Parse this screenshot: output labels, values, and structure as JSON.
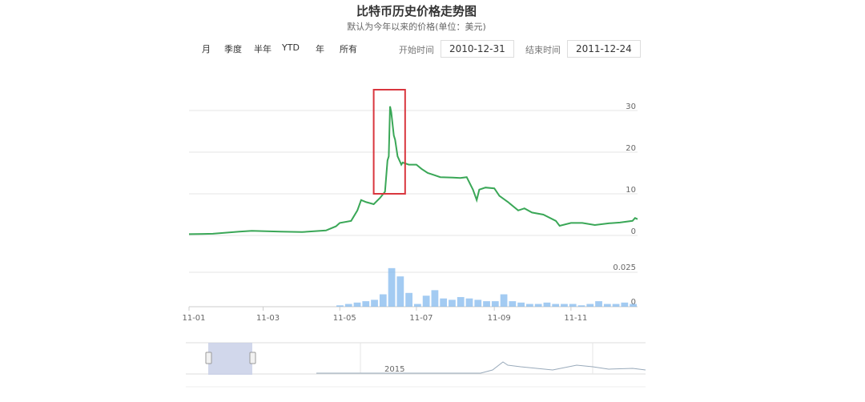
{
  "title": "比特币历史价格走势图",
  "subtitle": "默认为今年以来的价格(单位：美元)",
  "range_selector": {
    "buttons": [
      "月",
      "季度",
      "半年",
      "YTD",
      "年",
      "所有"
    ],
    "start_label": "开始时间",
    "start_value": "2010-12-31",
    "end_label": "结束时间",
    "end_value": "2011-12-24"
  },
  "colors": {
    "price_line": "#3aa757",
    "volume_bar": "#7cb5ec",
    "highlight": "#d9363e",
    "navigator_mask": "#c6cde6",
    "grid": "#e6e6e6"
  },
  "chart_data": [
    {
      "type": "line",
      "x_start": "2011-01-01",
      "x_end": "2011-12-24",
      "x_tick_labels": [
        "11-01",
        "11-03",
        "11-05",
        "11-07",
        "11-09",
        "11-11"
      ],
      "x_tick_dates": [
        "2011-01-01",
        "2011-03-01",
        "2011-05-01",
        "2011-07-01",
        "2011-09-01",
        "2011-11-01"
      ],
      "ylim": [
        0,
        35
      ],
      "y_ticks": [
        0,
        10,
        20,
        30
      ],
      "grid": true,
      "points": [
        [
          "2011-01-01",
          0.3
        ],
        [
          "2011-01-20",
          0.4
        ],
        [
          "2011-02-10",
          0.9
        ],
        [
          "2011-02-20",
          1.1
        ],
        [
          "2011-03-15",
          0.9
        ],
        [
          "2011-04-01",
          0.8
        ],
        [
          "2011-04-20",
          1.2
        ],
        [
          "2011-04-28",
          2.2
        ],
        [
          "2011-05-01",
          3
        ],
        [
          "2011-05-10",
          3.5
        ],
        [
          "2011-05-15",
          6
        ],
        [
          "2011-05-18",
          8.5
        ],
        [
          "2011-05-22",
          8
        ],
        [
          "2011-05-28",
          7.5
        ],
        [
          "2011-06-02",
          9
        ],
        [
          "2011-06-06",
          10.5
        ],
        [
          "2011-06-08",
          18
        ],
        [
          "2011-06-09",
          19
        ],
        [
          "2011-06-10",
          31
        ],
        [
          "2011-06-11",
          29.6
        ],
        [
          "2011-06-13",
          24
        ],
        [
          "2011-06-14",
          23
        ],
        [
          "2011-06-16",
          19
        ],
        [
          "2011-06-19",
          17
        ],
        [
          "2011-06-20",
          17.5
        ],
        [
          "2011-06-25",
          17
        ],
        [
          "2011-07-01",
          17
        ],
        [
          "2011-07-05",
          16
        ],
        [
          "2011-07-10",
          15
        ],
        [
          "2011-07-15",
          14.5
        ],
        [
          "2011-07-20",
          14
        ],
        [
          "2011-07-30",
          13.9
        ],
        [
          "2011-08-05",
          13.8
        ],
        [
          "2011-08-10",
          14
        ],
        [
          "2011-08-15",
          11
        ],
        [
          "2011-08-18",
          8.5
        ],
        [
          "2011-08-20",
          11
        ],
        [
          "2011-08-25",
          11.5
        ],
        [
          "2011-09-01",
          11.3
        ],
        [
          "2011-09-05",
          9.5
        ],
        [
          "2011-09-12",
          8
        ],
        [
          "2011-09-20",
          6
        ],
        [
          "2011-09-25",
          6.5
        ],
        [
          "2011-10-01",
          5.5
        ],
        [
          "2011-10-10",
          5
        ],
        [
          "2011-10-20",
          3.5
        ],
        [
          "2011-10-23",
          2.3
        ],
        [
          "2011-11-01",
          3
        ],
        [
          "2011-11-10",
          3
        ],
        [
          "2011-11-20",
          2.5
        ],
        [
          "2011-12-01",
          2.9
        ],
        [
          "2011-12-10",
          3.1
        ],
        [
          "2011-12-20",
          3.5
        ],
        [
          "2011-12-22",
          4.2
        ],
        [
          "2011-12-24",
          3.9
        ]
      ],
      "highlight": {
        "x_from": "2011-05-28",
        "x_to": "2011-06-22",
        "y_from": 10,
        "y_to": 35
      }
    },
    {
      "type": "bar",
      "ylim": [
        0,
        0.03
      ],
      "y_ticks": [
        0,
        0.025
      ],
      "y_tick_labels": [
        "0",
        "0.025"
      ],
      "x_start": "2011-01-01",
      "x_end": "2011-12-24",
      "weekly_values": [
        0,
        0,
        0,
        0,
        0,
        0,
        0,
        0,
        0,
        0,
        0,
        0,
        0,
        0,
        0,
        0,
        0,
        0.001,
        0.002,
        0.003,
        0.004,
        0.005,
        0.009,
        0.028,
        0.022,
        0.01,
        0.002,
        0.008,
        0.012,
        0.006,
        0.005,
        0.007,
        0.006,
        0.005,
        0.004,
        0.004,
        0.009,
        0.004,
        0.003,
        0.002,
        0.002,
        0.003,
        0.002,
        0.002,
        0.002,
        0.001,
        0.002,
        0.004,
        0.002,
        0.002,
        0.003,
        0.002
      ]
    }
  ],
  "navigator": {
    "label": "2015"
  }
}
